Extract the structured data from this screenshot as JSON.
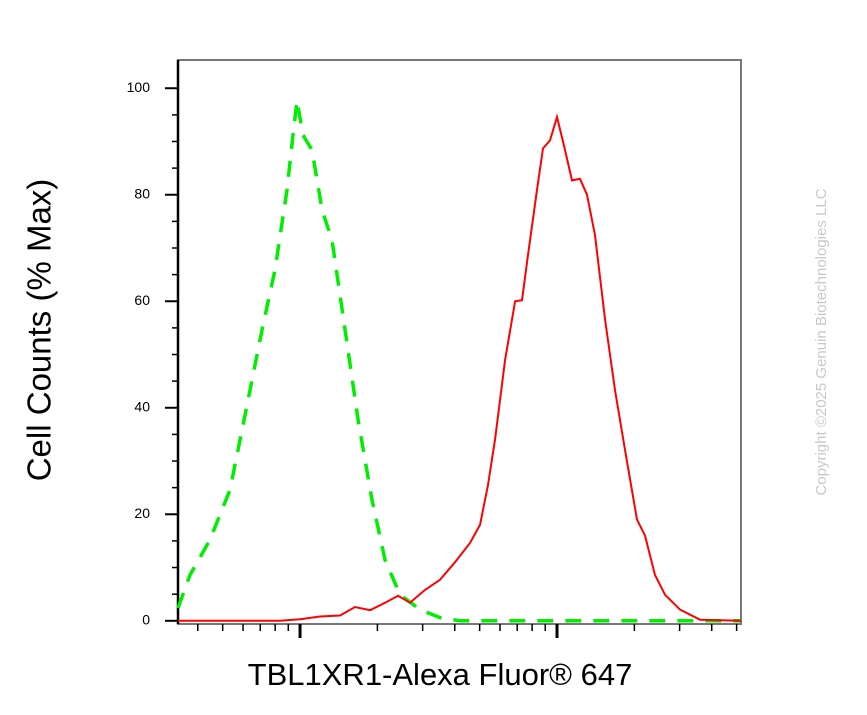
{
  "chart_data": {
    "type": "line",
    "y_label": "Cell Counts (% Max)",
    "x_label": "TBL1XR1-Alexa Fluor® 647",
    "watermark": "Copyright ©2025 Genuin Biotechnologies LLC",
    "xscale": "log",
    "xlim": [
      335,
      52000
    ],
    "xticks": [
      1000,
      10000
    ],
    "ylim": [
      -0.6,
      105.3
    ],
    "yticks": [
      0,
      20,
      40,
      60,
      80,
      100
    ],
    "series": [
      {
        "color": "#00ee00",
        "dashed": true,
        "x": [
          335,
          373,
          446,
          534,
          628,
          711,
          799,
          890,
          939,
          973,
          1027,
          1113,
          1218,
          1332,
          1497,
          1682,
          1906,
          2142,
          2449,
          2931,
          3505,
          4195,
          6001,
          14700,
          36000,
          52000
        ],
        "values": [
          2.4,
          8.6,
          15.2,
          24.6,
          41.5,
          54.6,
          65.9,
          80.9,
          91.2,
          97.7,
          91.2,
          88.4,
          77.1,
          71.5,
          54.6,
          37.7,
          22.7,
          11.4,
          4.9,
          2.1,
          0.6,
          0,
          0,
          0,
          0,
          0
        ]
      },
      {
        "color": "#ff0000",
        "dashed": false,
        "x": [
          335,
          836,
          1000,
          1196,
          1431,
          1637,
          1873,
          2142,
          2406,
          2679,
          3064,
          3505,
          4010,
          4586,
          5016,
          5389,
          5739,
          6278,
          6866,
          7308,
          7713,
          8361,
          8822,
          9393,
          10000,
          10740,
          11440,
          12290,
          13080,
          14060,
          15380,
          16820,
          18400,
          20480,
          22000,
          24060,
          26320,
          30100,
          36000,
          52000
        ],
        "values": [
          0,
          0,
          0.3,
          0.8,
          1,
          2.6,
          2,
          3.4,
          4.7,
          3.4,
          5.8,
          7.7,
          11,
          14.6,
          18,
          25.5,
          34,
          49,
          60,
          60.2,
          68.7,
          80.9,
          88.7,
          90.2,
          94.6,
          88.4,
          82.7,
          83,
          80,
          72.4,
          56.5,
          43.3,
          32,
          19,
          16,
          8.6,
          4.9,
          2.1,
          0.2,
          0
        ]
      }
    ]
  }
}
